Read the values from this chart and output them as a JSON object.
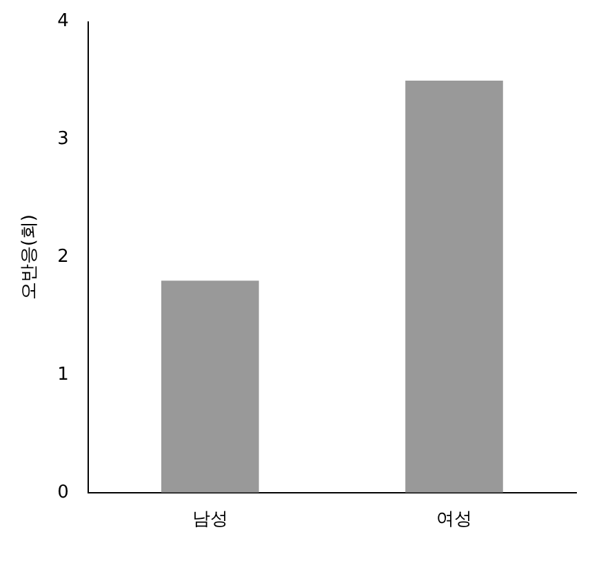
{
  "chart_data": {
    "type": "bar",
    "ylabel": "오반응(회)",
    "categories": [
      "남성",
      "여성"
    ],
    "values": [
      1.8,
      3.5
    ],
    "color": "#999999",
    "ylim": [
      0,
      4
    ],
    "yticks": [
      0,
      1,
      2,
      3,
      4
    ],
    "grid": false,
    "legend": false
  }
}
